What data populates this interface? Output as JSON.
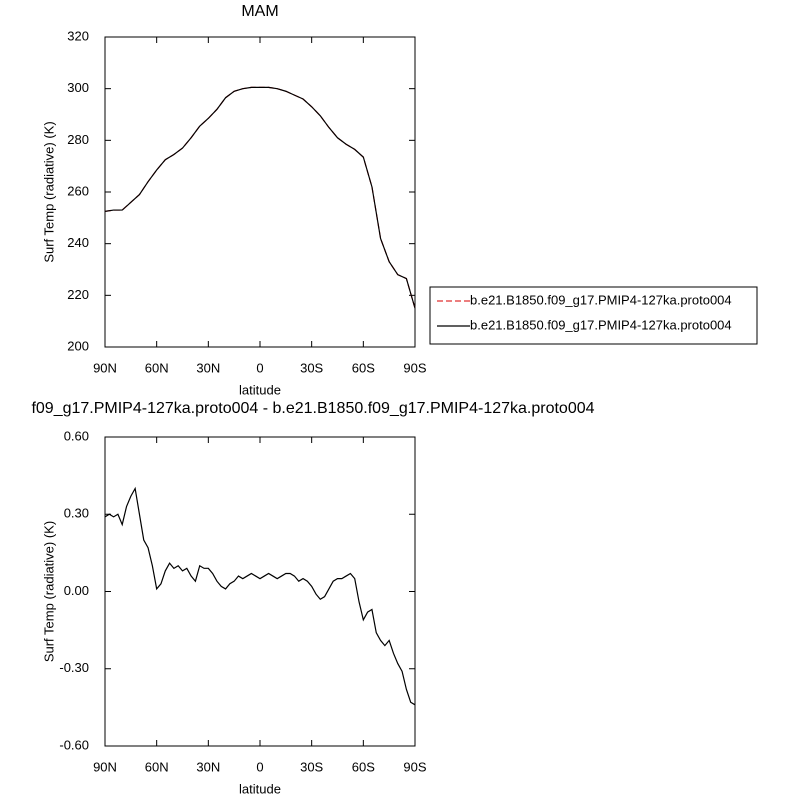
{
  "chart_data": [
    {
      "type": "line",
      "title": "MAM",
      "xlabel": "latitude",
      "ylabel": "Surf Temp (radiative) (K)",
      "x": [
        90,
        85,
        80,
        75,
        70,
        65,
        60,
        55,
        50,
        45,
        40,
        35,
        30,
        25,
        20,
        15,
        10,
        5,
        0,
        -5,
        -10,
        -15,
        -20,
        -25,
        -30,
        -35,
        -40,
        -45,
        -50,
        -55,
        -60,
        -65,
        -70,
        -75,
        -80,
        -85,
        -90
      ],
      "series": [
        {
          "name": "b.e21.B1850.f09_g17.PMIP4-127ka.proto004",
          "color": "#e03030",
          "style": "dashed",
          "values": [
            252.5,
            253,
            253,
            256,
            259,
            264,
            268.5,
            272.5,
            274.5,
            277,
            281,
            285.5,
            288.5,
            292,
            296.5,
            299,
            300,
            300.5,
            300.5,
            300.5,
            300,
            299,
            297.5,
            296,
            293,
            289.5,
            285,
            281,
            278.5,
            276.5,
            273.5,
            262,
            242,
            233,
            228,
            226.5,
            215
          ]
        },
        {
          "name": "b.e21.B1850.f09_g17.PMIP4-127ka.proto004",
          "color": "#000000",
          "style": "solid",
          "values": [
            252.5,
            253,
            253,
            256,
            259,
            264,
            268.5,
            272.5,
            274.5,
            277,
            281,
            285.5,
            288.5,
            292,
            296.5,
            299,
            300,
            300.5,
            300.5,
            300.5,
            300,
            299,
            297.5,
            296,
            293,
            289.5,
            285,
            281,
            278.5,
            276.5,
            273.5,
            262,
            242,
            233,
            228,
            226.5,
            215
          ]
        }
      ],
      "xlim": [
        90,
        -90
      ],
      "xticks": [
        {
          "value": 90,
          "label": "90N"
        },
        {
          "value": 60,
          "label": "60N"
        },
        {
          "value": 30,
          "label": "30N"
        },
        0,
        {
          "value": -30,
          "label": "30S"
        },
        {
          "value": -60,
          "label": "60S"
        },
        {
          "value": -90,
          "label": "90S"
        }
      ],
      "ylim": [
        200,
        320
      ],
      "yticks": [
        200,
        220,
        240,
        260,
        280,
        300,
        320
      ],
      "legend": "right"
    },
    {
      "type": "line",
      "title": "f09_g17.PMIP4-127ka.proto004 - b.e21.B1850.f09_g17.PMIP4-127ka.proto004",
      "xlabel": "latitude",
      "ylabel": "Surf Temp (radiative) (K)",
      "x": [
        90,
        87.5,
        85,
        82.5,
        80,
        77.5,
        75,
        72.5,
        70,
        67.5,
        65,
        62.5,
        60,
        57.5,
        55,
        52.5,
        50,
        47.5,
        45,
        42.5,
        40,
        37.5,
        35,
        32.5,
        30,
        27.5,
        25,
        22.5,
        20,
        17.5,
        15,
        12.5,
        10,
        7.5,
        5,
        2.5,
        0,
        -2.5,
        -5,
        -7.5,
        -10,
        -12.5,
        -15,
        -17.5,
        -20,
        -22.5,
        -25,
        -27.5,
        -30,
        -32.5,
        -35,
        -37.5,
        -40,
        -42.5,
        -45,
        -47.5,
        -50,
        -52.5,
        -55,
        -57.5,
        -60,
        -62.5,
        -65,
        -67.5,
        -70,
        -72.5,
        -75,
        -77.5,
        -80,
        -82.5,
        -85,
        -87.5,
        -90
      ],
      "series": [
        {
          "color": "#000000",
          "style": "solid",
          "values": [
            0.29,
            0.3,
            0.29,
            0.3,
            0.26,
            0.33,
            0.37,
            0.4,
            0.3,
            0.2,
            0.17,
            0.1,
            0.01,
            0.03,
            0.08,
            0.11,
            0.09,
            0.1,
            0.08,
            0.09,
            0.06,
            0.04,
            0.1,
            0.09,
            0.09,
            0.07,
            0.04,
            0.02,
            0.01,
            0.03,
            0.04,
            0.06,
            0.05,
            0.06,
            0.07,
            0.06,
            0.05,
            0.06,
            0.07,
            0.06,
            0.05,
            0.06,
            0.07,
            0.07,
            0.06,
            0.04,
            0.05,
            0.04,
            0.02,
            -0.01,
            -0.03,
            -0.02,
            0.01,
            0.04,
            0.05,
            0.05,
            0.06,
            0.07,
            0.05,
            -0.04,
            -0.11,
            -0.08,
            -0.07,
            -0.16,
            -0.19,
            -0.21,
            -0.19,
            -0.24,
            -0.28,
            -0.31,
            -0.38,
            -0.43,
            -0.44
          ]
        }
      ],
      "xlim": [
        90,
        -90
      ],
      "xticks": [
        {
          "value": 90,
          "label": "90N"
        },
        {
          "value": 60,
          "label": "60N"
        },
        {
          "value": 30,
          "label": "30N"
        },
        0,
        {
          "value": -30,
          "label": "30S"
        },
        {
          "value": -60,
          "label": "60S"
        },
        {
          "value": -90,
          "label": "90S"
        }
      ],
      "ylim": [
        -0.6,
        0.6
      ],
      "yticks": [
        {
          "value": -0.6,
          "label": "-0.60"
        },
        {
          "value": -0.3,
          "label": "-0.30"
        },
        {
          "value": 0,
          "label": "0.00"
        },
        {
          "value": 0.3,
          "label": "0.30"
        },
        {
          "value": 0.6,
          "label": "0.60"
        }
      ]
    }
  ]
}
